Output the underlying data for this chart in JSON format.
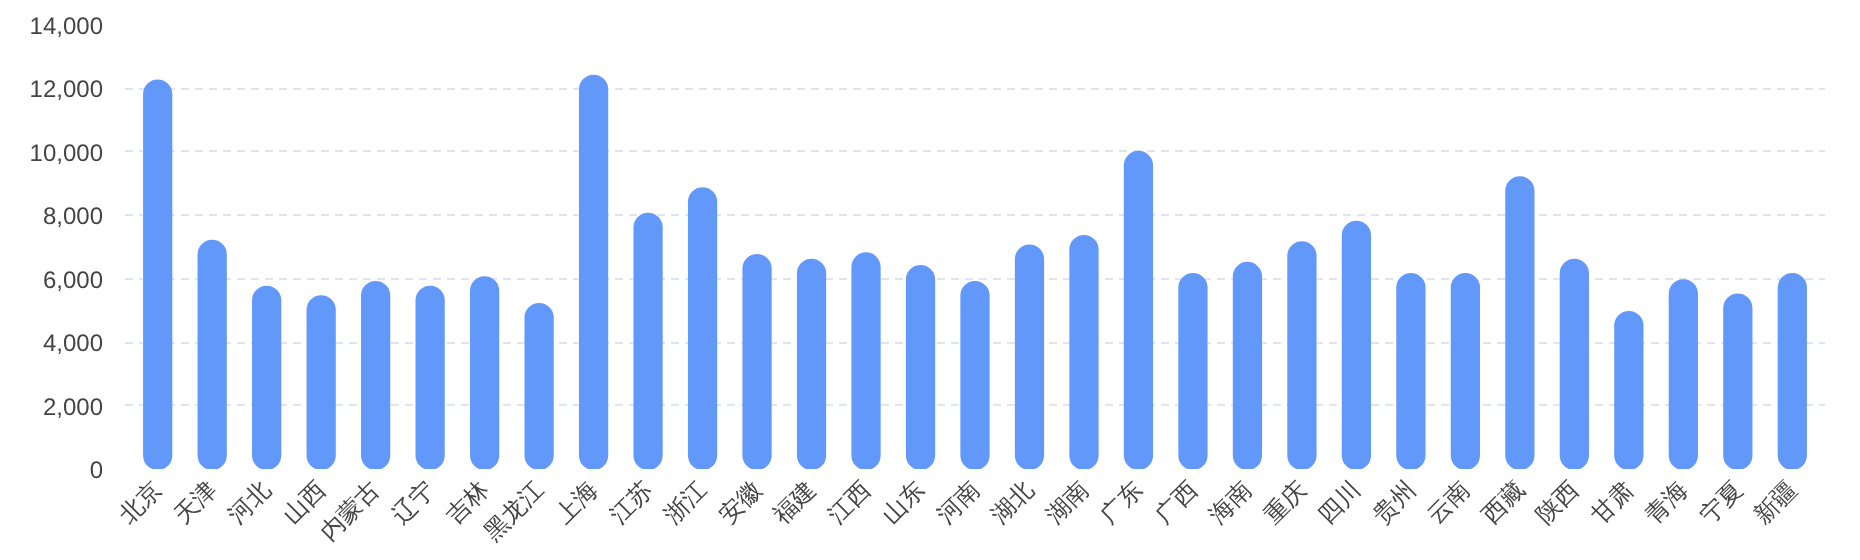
{
  "chart_data": {
    "type": "bar",
    "categories": [
      "北京",
      "天津",
      "河北",
      "山西",
      "内蒙古",
      "辽宁",
      "吉林",
      "黑龙江",
      "上海",
      "江苏",
      "浙江",
      "安徽",
      "福建",
      "江西",
      "山东",
      "河南",
      "湖北",
      "湖南",
      "广东",
      "广西",
      "海南",
      "重庆",
      "四川",
      "贵州",
      "云南",
      "西藏",
      "陕西",
      "甘肃",
      "青海",
      "宁夏",
      "新疆"
    ],
    "values": [
      12250,
      7200,
      5750,
      5450,
      5900,
      5750,
      6050,
      5200,
      12400,
      8050,
      8850,
      6750,
      6600,
      6800,
      6400,
      5900,
      7050,
      7350,
      10000,
      6150,
      6500,
      7150,
      7800,
      6150,
      6150,
      9200,
      6600,
      4950,
      5950,
      5500,
      6150
    ],
    "color": "#6398fb",
    "ylim": [
      0,
      14000
    ],
    "yticks": [
      0,
      {
        "value": 2000,
        "label": "2,000"
      },
      {
        "value": 4000,
        "label": "4,000"
      },
      {
        "value": 6000,
        "label": "6,000"
      },
      {
        "value": 8000,
        "label": "8,000"
      },
      {
        "value": 10000,
        "label": "10,000"
      },
      {
        "value": 12000,
        "label": "12,000"
      },
      {
        "value": 14000,
        "label": "14,000"
      }
    ],
    "grid": "y"
  }
}
